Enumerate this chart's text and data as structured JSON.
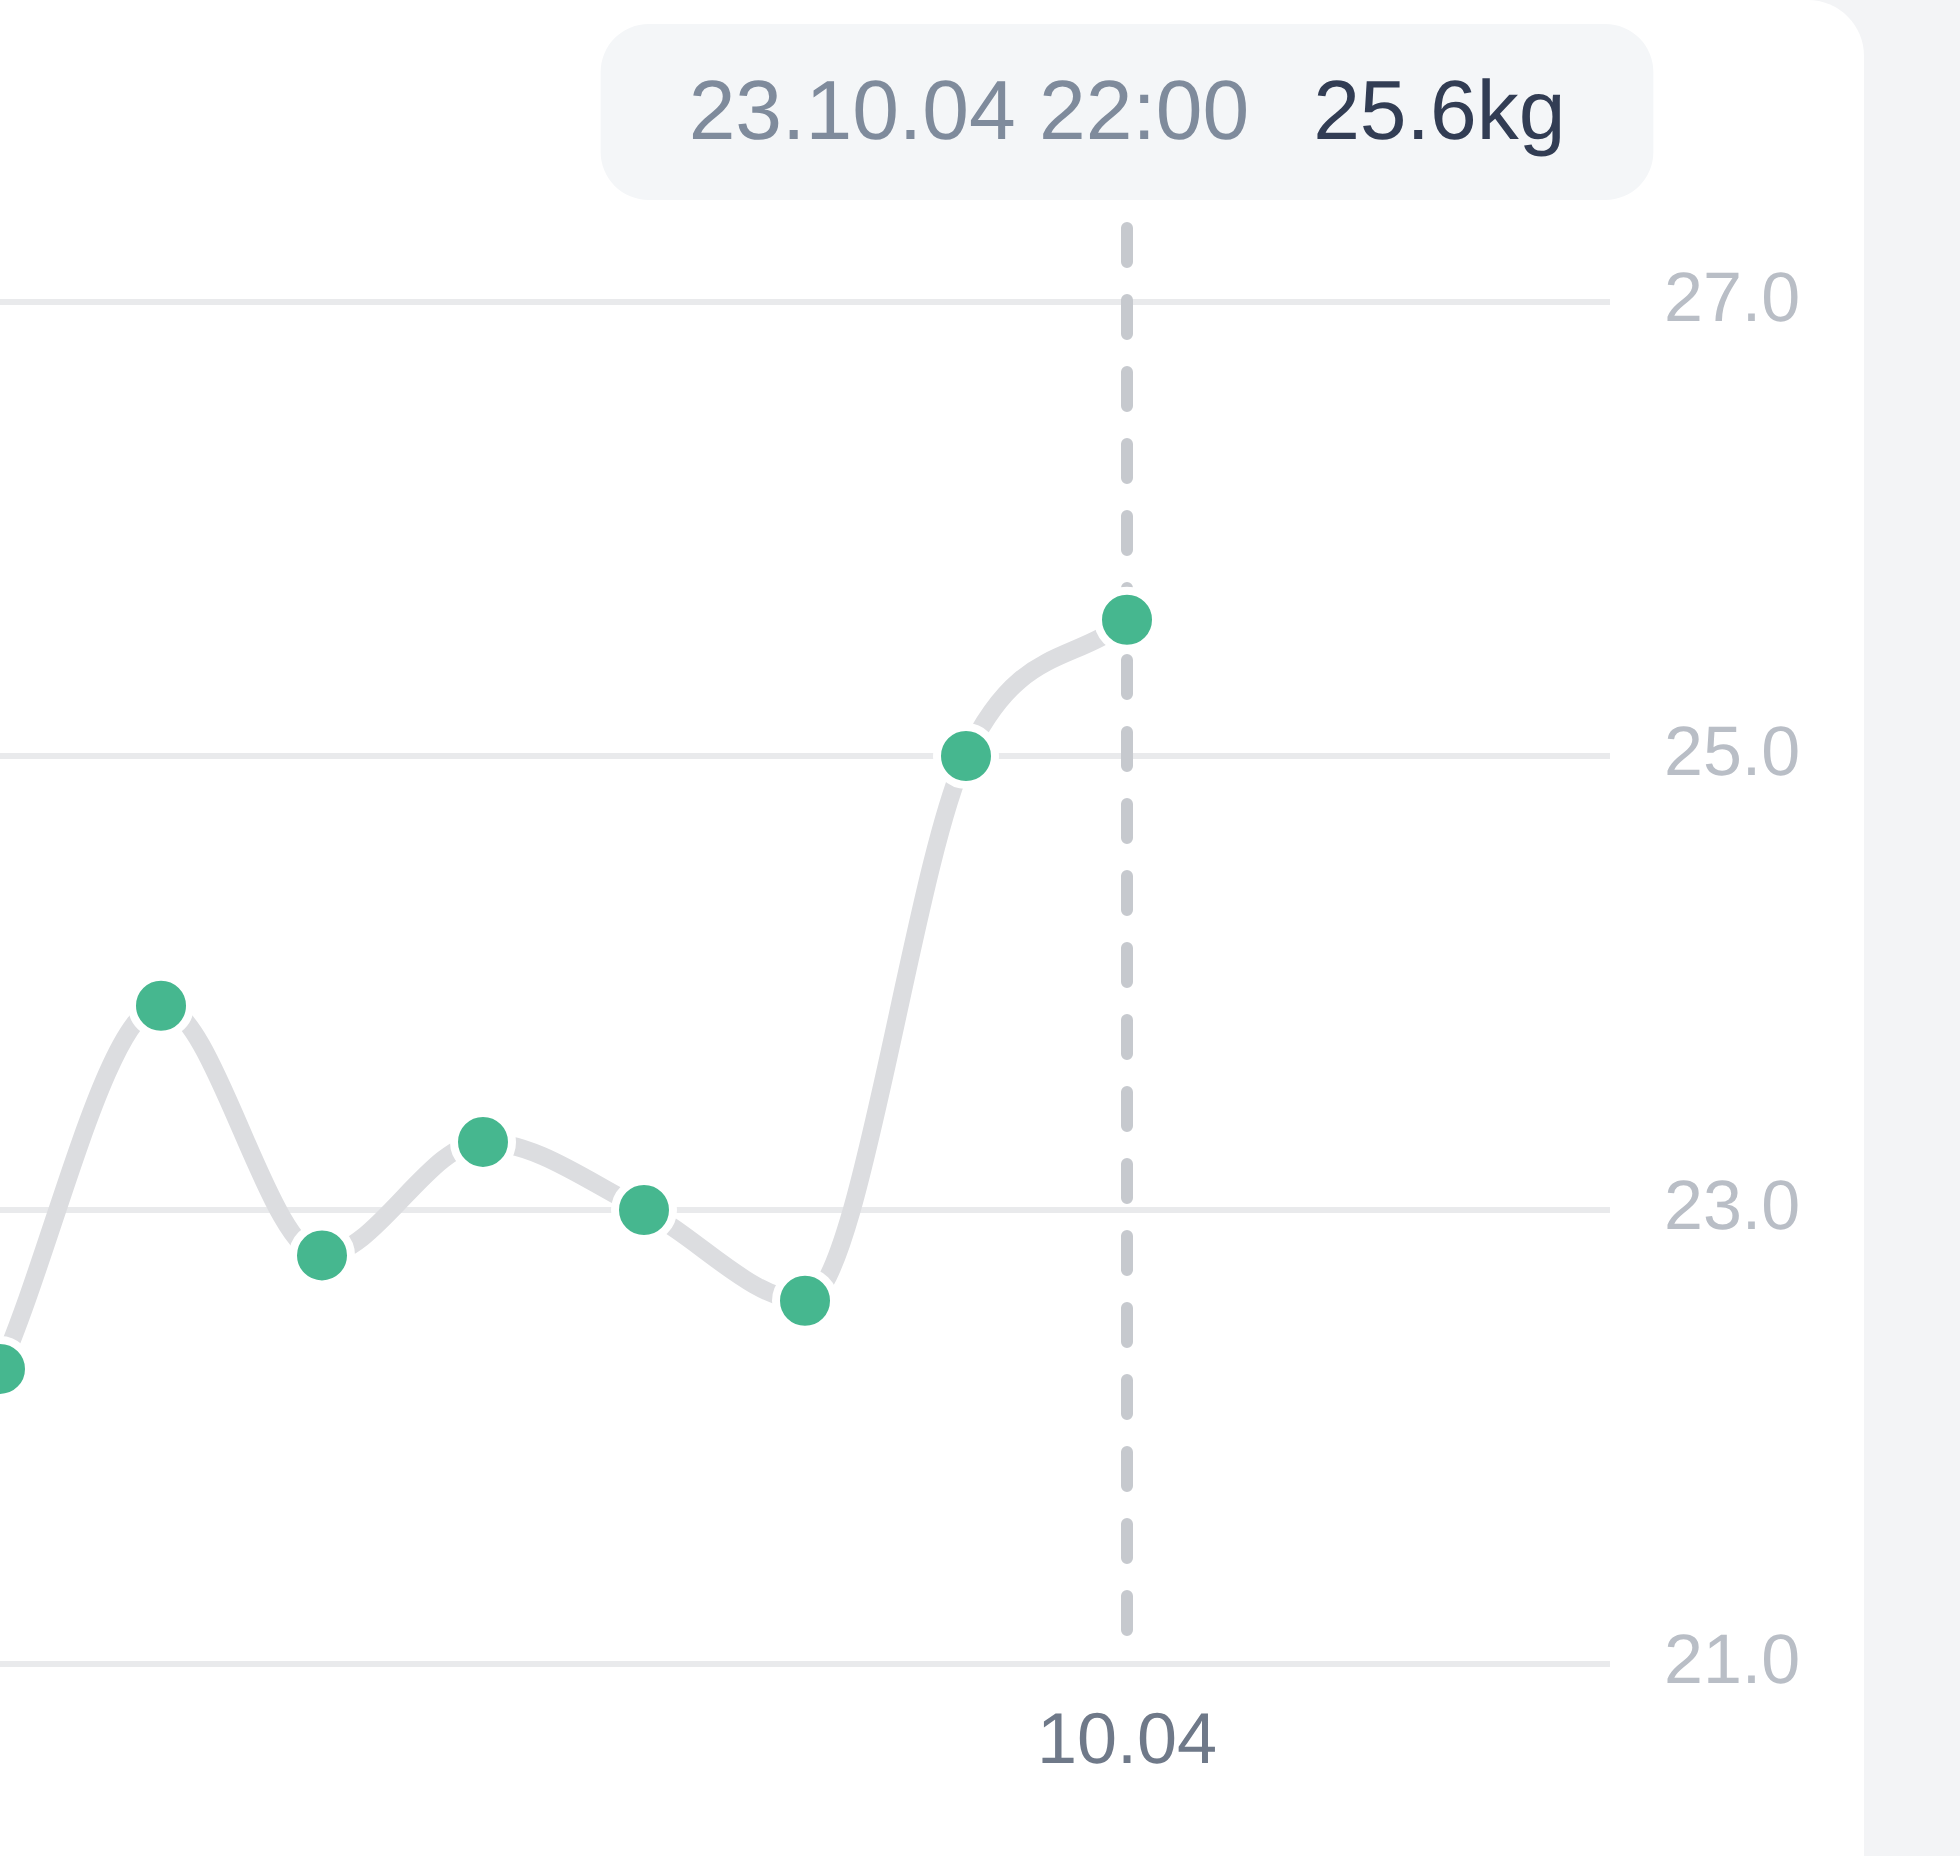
{
  "chart_data": {
    "type": "line",
    "categories": [
      null,
      null,
      null,
      null,
      null,
      null,
      null,
      "10.04",
      null,
      null,
      null
    ],
    "series": [
      {
        "color": "#dcdde0",
        "colors": [
          "#46b78f",
          "#46b78f",
          "#46b78f",
          "#46b78f",
          "#46b78f",
          "#46b78f",
          "#46b78f",
          "#46b78f",
          null,
          null,
          null
        ],
        "values": [
          22.3,
          23.9,
          22.8,
          23.3,
          23,
          22.6,
          25,
          25.6,
          null,
          null,
          null
        ]
      }
    ],
    "ylim": [
      21,
      27
    ],
    "yticks": [
      {
        "value": 21,
        "label": "21.0"
      },
      {
        "value": 23,
        "label": "23.0"
      },
      {
        "value": 25,
        "label": "25.0"
      },
      {
        "value": 27,
        "label": "27.0"
      }
    ],
    "grid": "y",
    "marker": "circle",
    "line_style": "solid",
    "ref_lines": [
      {
        "axis": "x",
        "value": "10.04",
        "color": "#c6c9ce",
        "line_style": "dashed"
      }
    ],
    "annotations": [
      "23.10.04 22:00",
      "25.6kg"
    ]
  }
}
